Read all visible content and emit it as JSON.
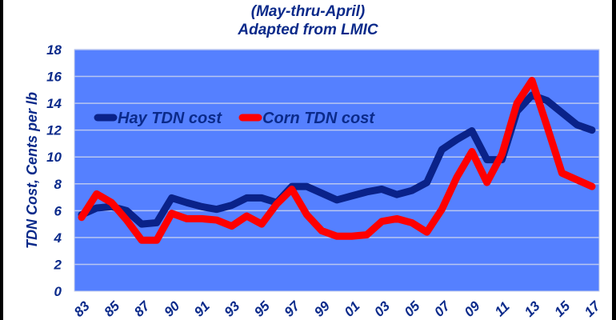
{
  "chart_data": {
    "type": "line",
    "subtitle": [
      "(May-thru-April)",
      "Adapted from LMIC"
    ],
    "ylabel": "TDN Cost, Cents per lb",
    "xlabel": "",
    "ylim": [
      0,
      18
    ],
    "y_ticks": [
      "0",
      "2",
      "4",
      "6",
      "8",
      "10",
      "12",
      "14",
      "16",
      "18"
    ],
    "x_tick_labels": [
      "83",
      "85",
      "87",
      "90",
      "91",
      "93",
      "95",
      "97",
      "99",
      "01",
      "03",
      "05",
      "07",
      "09",
      "11",
      "13",
      "15",
      "17"
    ],
    "grid": "horizontal",
    "legend_placement": "top-left",
    "background_color": "#5580ff",
    "series": [
      {
        "name": "Hay TDN cost",
        "color": "#0a2289",
        "values": [
          5.7,
          6.2,
          6.3,
          6.0,
          5.0,
          5.1,
          6.95,
          6.6,
          6.3,
          6.1,
          6.4,
          6.95,
          6.95,
          6.6,
          7.8,
          7.8,
          7.3,
          6.8,
          7.1,
          7.4,
          7.6,
          7.2,
          7.5,
          8.1,
          10.55,
          11.3,
          11.95,
          9.8,
          9.8,
          13.4,
          14.6,
          14.2,
          13.3,
          12.4,
          12.0
        ]
      },
      {
        "name": "Corn TDN cost",
        "color": "#ff0000",
        "values": [
          5.5,
          7.25,
          6.6,
          5.3,
          3.8,
          3.8,
          5.8,
          5.4,
          5.4,
          5.3,
          4.85,
          5.6,
          5.0,
          6.5,
          7.6,
          5.7,
          4.5,
          4.1,
          4.1,
          4.2,
          5.2,
          5.4,
          5.1,
          4.4,
          6.1,
          8.5,
          10.4,
          8.1,
          10.2,
          14.0,
          15.7,
          12.3,
          8.8,
          8.3,
          7.8
        ]
      }
    ]
  }
}
